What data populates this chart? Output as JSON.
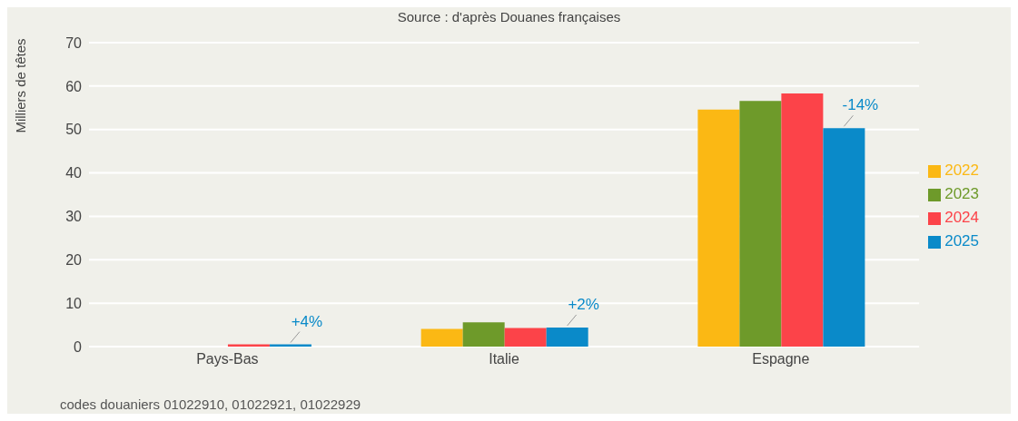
{
  "chart_data": {
    "type": "bar",
    "subtitle": "Source : d'après Douanes françaises",
    "ylabel": "Milliers de têtes",
    "categories": [
      "Pays-Bas",
      "Italie",
      "Espagne"
    ],
    "series": [
      {
        "name": "2022",
        "color": "#fbb814",
        "values": [
          0,
          4.1,
          54.6
        ]
      },
      {
        "name": "2023",
        "color": "#6e9a2a",
        "values": [
          0,
          5.6,
          56.6
        ]
      },
      {
        "name": "2024",
        "color": "#fc4349",
        "values": [
          0.5,
          4.3,
          58.3
        ]
      },
      {
        "name": "2025",
        "color": "#0a8ac9",
        "values": [
          0.5,
          4.4,
          50.3
        ]
      }
    ],
    "ylim": [
      0,
      70
    ],
    "yticks": [
      0,
      10,
      20,
      30,
      40,
      50,
      60,
      70
    ],
    "grid": "y",
    "legend": "right",
    "annotations": [
      "+4%",
      "+2%",
      "-14%",
      "codes douaniers 01022910, 01022921, 01022929"
    ]
  }
}
